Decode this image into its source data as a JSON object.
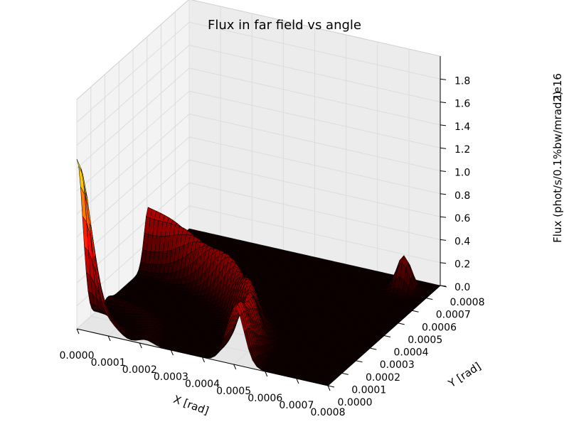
{
  "chart_data": {
    "type": "surface3d",
    "title": "Flux in far field vs angle",
    "xlabel": "X [rad]",
    "ylabel": "Y [rad]",
    "zlabel": "Flux (phot/s/0.1%bw/mrad2)",
    "z_offset_label": "1e16",
    "xlim": [
      0.0,
      0.0008
    ],
    "ylim": [
      0.0,
      0.0008
    ],
    "zlim": [
      0.0,
      1.8
    ],
    "x_ticks": [
      "0.0000",
      "0.0001",
      "0.0002",
      "0.0003",
      "0.0004",
      "0.0005",
      "0.0006",
      "0.0007",
      "0.0008"
    ],
    "y_ticks": [
      "0.0000",
      "0.0001",
      "0.0002",
      "0.0003",
      "0.0004",
      "0.0005",
      "0.0006",
      "0.0007",
      "0.0008"
    ],
    "z_ticks": [
      "0.0",
      "0.2",
      "0.4",
      "0.6",
      "0.8",
      "1.0",
      "1.2",
      "1.4",
      "1.6",
      "1.8"
    ],
    "surface_peaks": [
      {
        "x": 0.0,
        "y": 0.0,
        "z": 1.48
      },
      {
        "x": 0.0005,
        "y": 0.0,
        "z": 0.55
      },
      {
        "x": 0.0,
        "y": 0.0005,
        "z": 0.55
      },
      {
        "x": 0.0007,
        "y": 0.0007,
        "z": 0.3
      }
    ],
    "colormap": "hot",
    "grid": true
  }
}
